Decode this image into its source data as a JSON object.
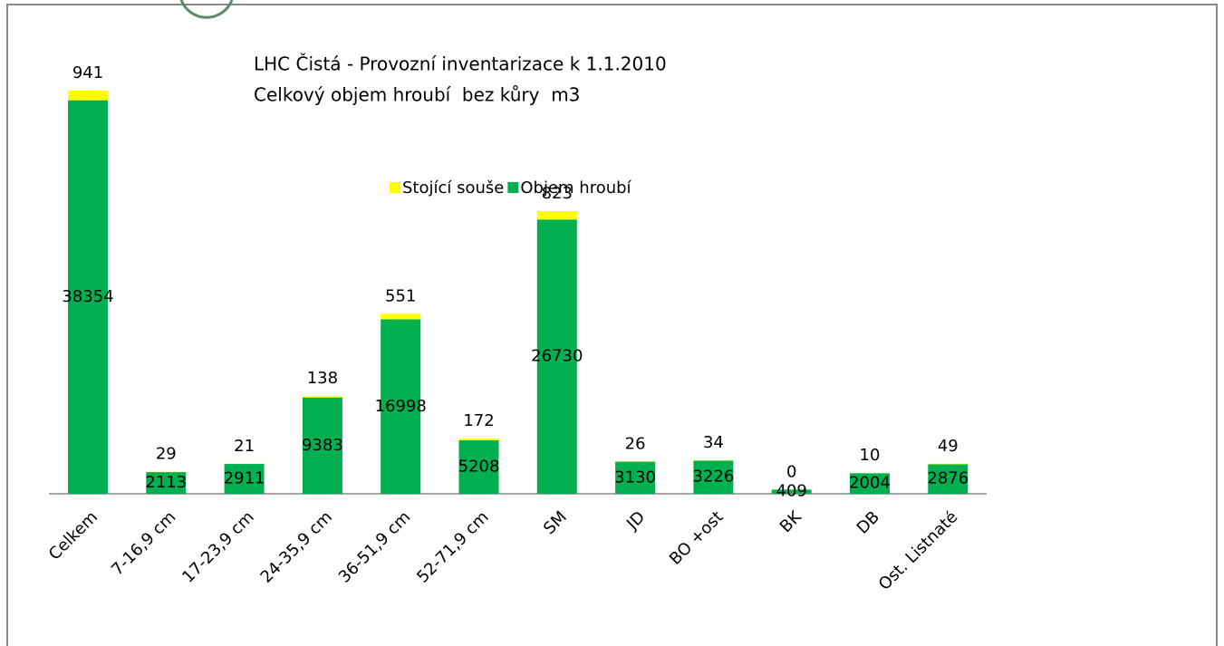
{
  "chart_data": {
    "type": "stacked_bar",
    "title": "LHC Čistá - Provozní inventarizace k 1.1.2010",
    "subtitle": "Celkový objem hroubí  bez kůry  m3",
    "categories": [
      "Celkem",
      "7-16,9 cm",
      "17-23,9 cm",
      "24-35,9 cm",
      "36-51,9 cm",
      "52-71,9 cm",
      "SM",
      "JD",
      "BO +ost",
      "BK",
      "DB",
      "Ost. Listnaté"
    ],
    "series": [
      {
        "name": "Objem hroubí",
        "color": "#00b050",
        "values": [
          38354,
          2113,
          2911,
          9383,
          16998,
          5208,
          26730,
          3130,
          3226,
          409,
          2004,
          2876
        ]
      },
      {
        "name": "Stojící souše",
        "color": "#ffff00",
        "values": [
          941,
          29,
          21,
          138,
          551,
          172,
          823,
          26,
          34,
          0,
          10,
          49
        ]
      }
    ]
  }
}
